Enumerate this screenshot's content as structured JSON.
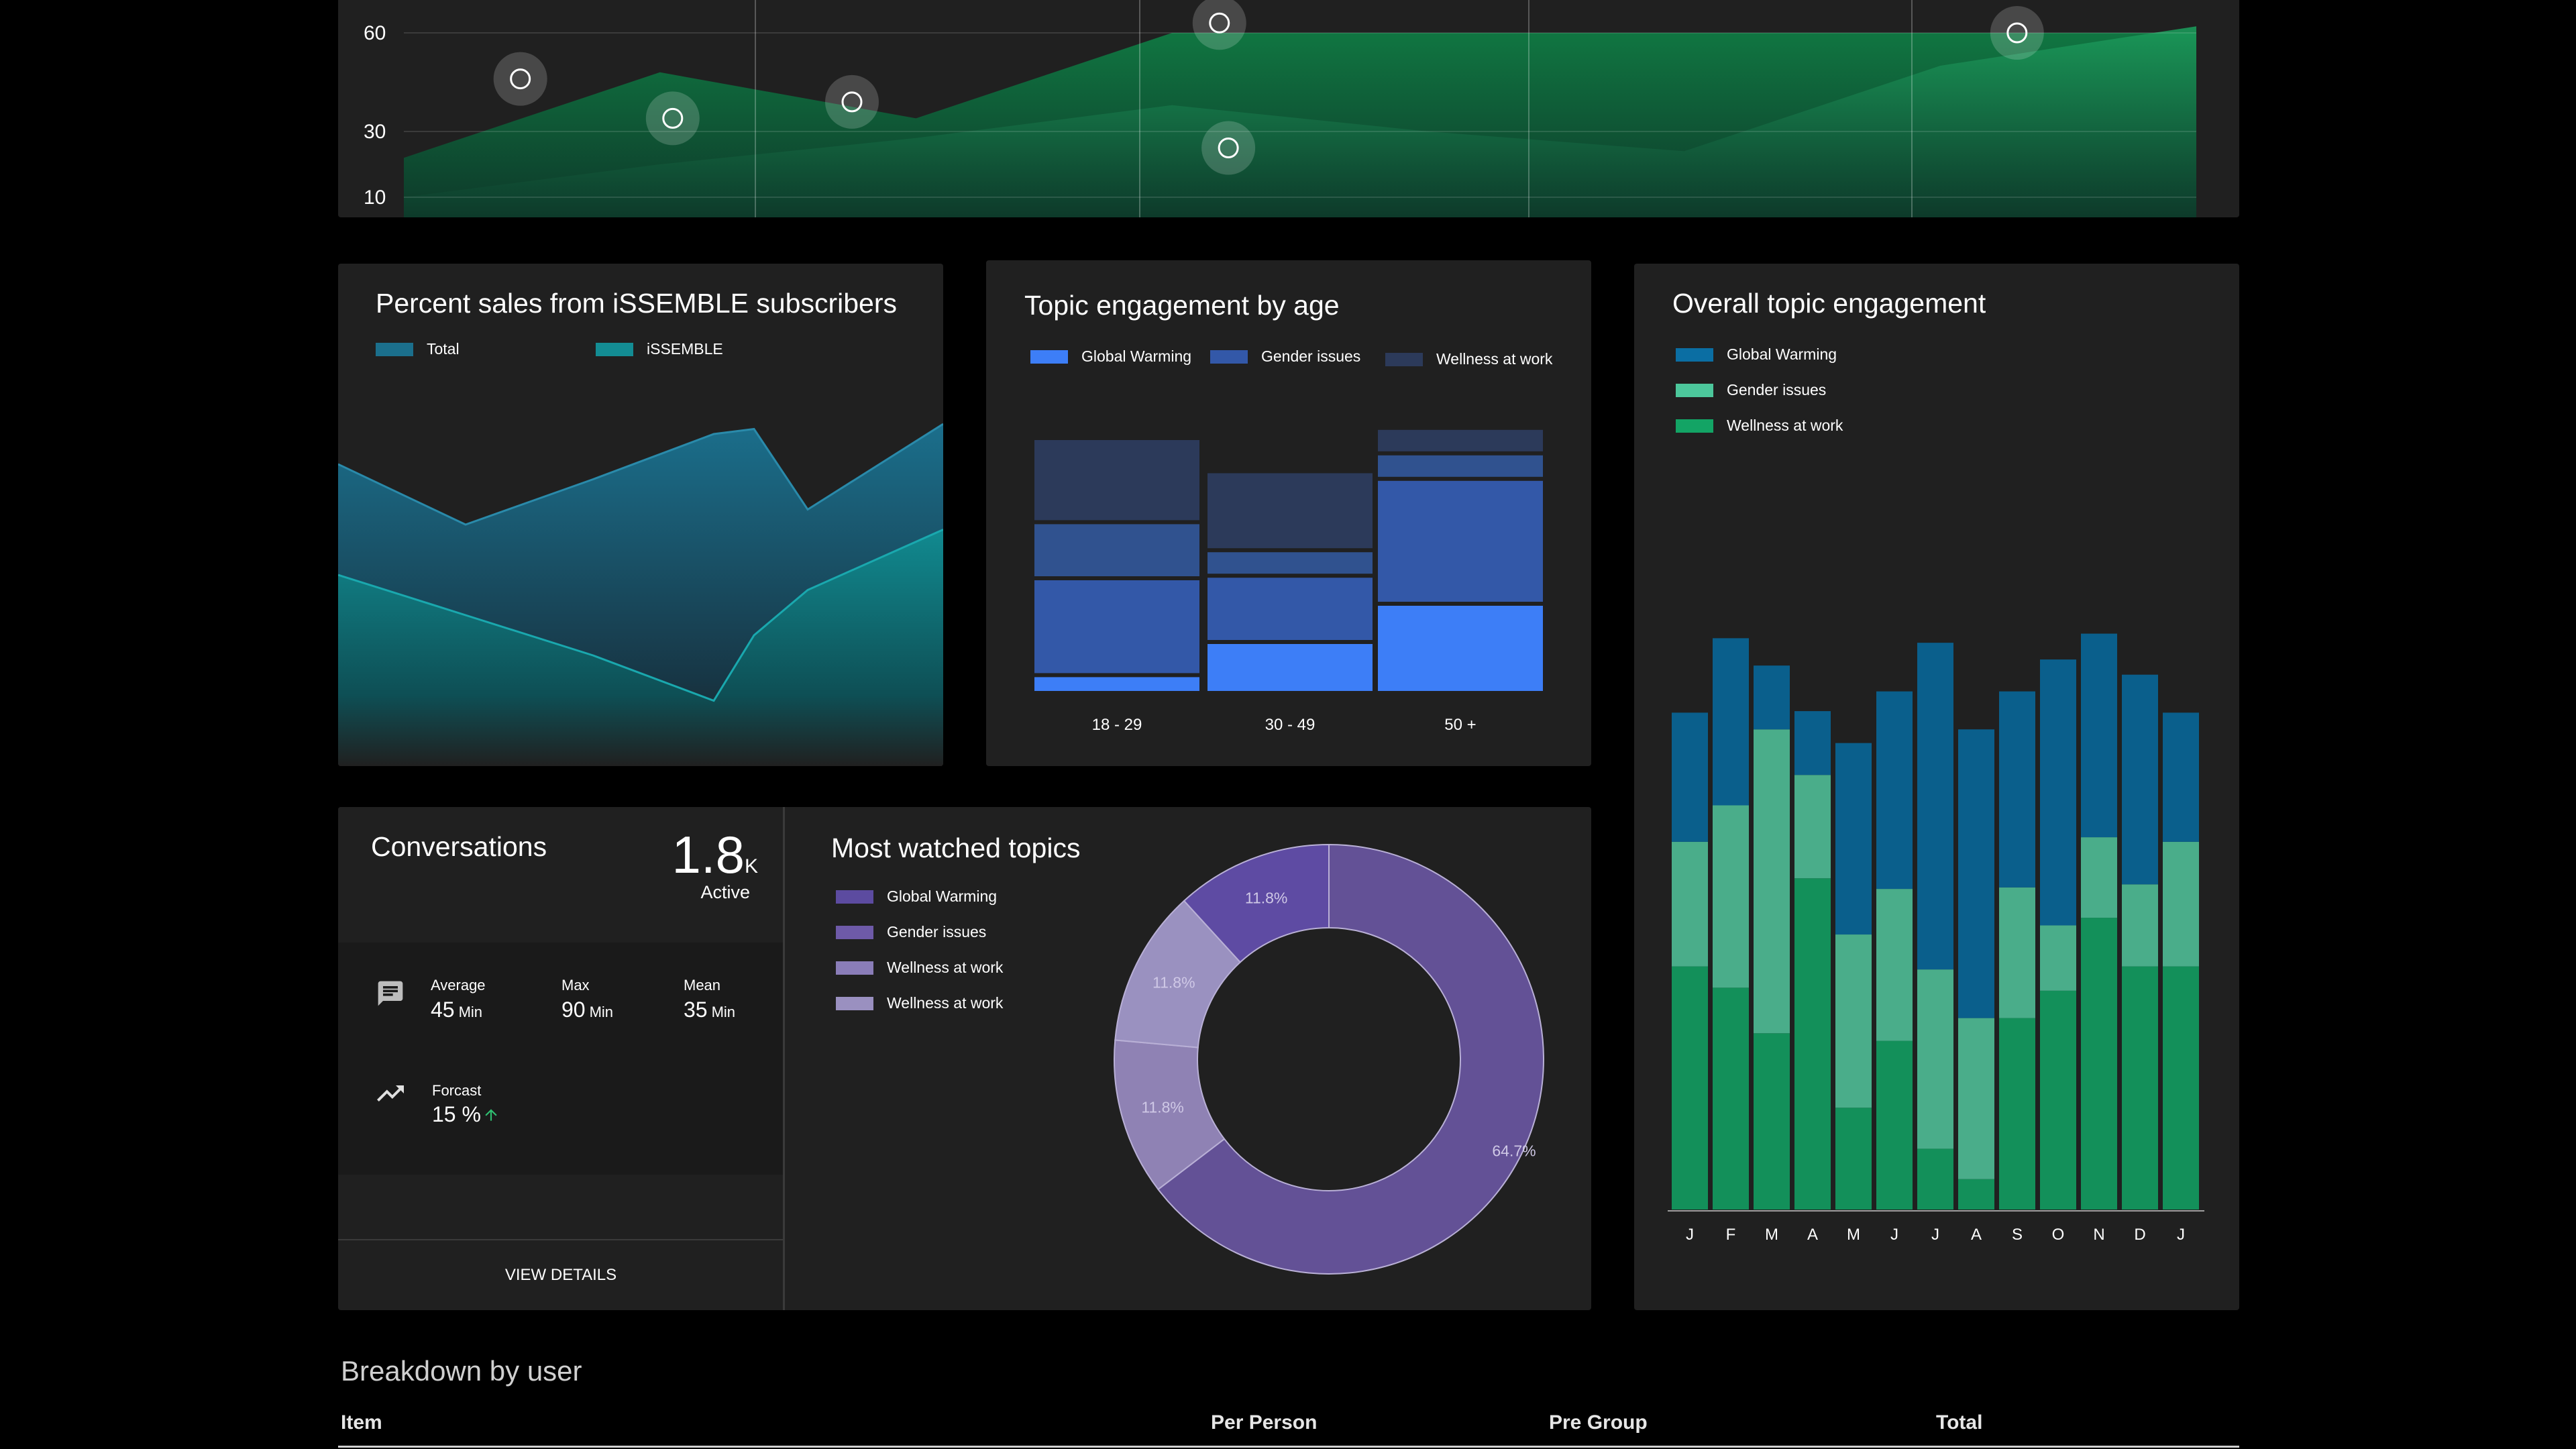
{
  "top_chart": {
    "y_ticks": [
      "60",
      "30",
      "10"
    ],
    "colors": {
      "green_dark": "#0e7a3f",
      "green_light": "#1a8a55"
    }
  },
  "sales_card": {
    "title": "Percent sales from iSSEMBLE subscribers",
    "legend": [
      {
        "label": "Total",
        "color": "#1b6f8c"
      },
      {
        "label": "iSSEMBLE",
        "color": "#138c93"
      }
    ]
  },
  "age_card": {
    "title": "Topic engagement by age",
    "legend": [
      {
        "label": "Global Warming",
        "color": "#3d7ef7"
      },
      {
        "label": "Gender issues",
        "color": "#3358a8"
      },
      {
        "label": "Wellness at work",
        "color": "#2c3a5a"
      }
    ]
  },
  "overall_card": {
    "title": "Overall topic engagement",
    "legend": [
      {
        "label": "Global Warming",
        "color": "#0b6ea3"
      },
      {
        "label": "Gender issues",
        "color": "#4cc79b"
      },
      {
        "label": "Wellness at work",
        "color": "#13a465"
      }
    ]
  },
  "conversations": {
    "title": "Conversations",
    "active_value": "1.8",
    "active_unit": "K",
    "active_label": "Active",
    "average_label": "Average",
    "average_value": "45",
    "max_label": "Max",
    "max_value": "90",
    "mean_label": "Mean",
    "mean_value": "35",
    "unit": "Min",
    "forecast_label": "Forcast",
    "forecast_value": "15 %",
    "view_details": "VIEW DETAILS",
    "icons": {
      "chat": "chat-icon",
      "trend": "trending-up-icon",
      "arrow": "arrow-up-icon"
    }
  },
  "topics_card": {
    "title": "Most watched topics",
    "legend": [
      {
        "label": "Global Warming",
        "color": "#5c4ba0"
      },
      {
        "label": "Gender issues",
        "color": "#6e5aa8"
      },
      {
        "label": "Wellness at work",
        "color": "#8a7db8"
      },
      {
        "label": "Wellness at work",
        "color": "#9a90c0"
      }
    ]
  },
  "breakdown": {
    "title": "Breakdown by user",
    "columns": [
      "Item",
      "Per Person",
      "Pre Group",
      "Total"
    ]
  },
  "chart_data": [
    {
      "type": "area",
      "title": "",
      "y_ticks": [
        10,
        30,
        60
      ],
      "series": [
        {
          "values": [
            10,
            20,
            28,
            38,
            30,
            24,
            50,
            62
          ]
        },
        {
          "values": [
            22,
            48,
            34,
            60,
            60,
            60,
            60,
            60
          ]
        }
      ],
      "markers": [
        {
          "x": 0.26,
          "y": 46
        },
        {
          "x": 0.6,
          "y": 34
        },
        {
          "x": 1.0,
          "y": 39
        },
        {
          "x": 1.82,
          "y": 63
        },
        {
          "x": 1.84,
          "y": 25
        },
        {
          "x": 3.6,
          "y": 60
        }
      ]
    },
    {
      "type": "area",
      "title": "Percent sales from iSSEMBLE subscribers",
      "series": [
        {
          "name": "Total",
          "values": [
            60,
            48,
            57,
            66,
            67,
            51,
            68
          ]
        },
        {
          "name": "iSSEMBLE",
          "values": [
            38,
            30,
            22,
            13,
            26,
            35,
            47
          ]
        }
      ]
    },
    {
      "type": "bar",
      "title": "Topic engagement by age",
      "categories": [
        "18 - 29",
        "30 - 49",
        "50 +"
      ],
      "stacked_segments": [
        [
          7,
          38,
          22,
          33
        ],
        [
          20,
          26,
          10,
          31
        ],
        [
          35,
          49,
          10,
          10
        ]
      ],
      "series_colors": [
        "#3d7ef7",
        "#3358a8",
        "#30528f",
        "#2c3a5a"
      ]
    },
    {
      "type": "bar",
      "title": "Overall topic engagement",
      "categories": [
        "J",
        "F",
        "M",
        "A",
        "M",
        "J",
        "J",
        "A",
        "S",
        "O",
        "N",
        "D",
        "J"
      ],
      "series": [
        {
          "name": "Wellness at work",
          "values": [
            160,
            146,
            116,
            218,
            67,
            111,
            40,
            20,
            126,
            144,
            192,
            160,
            160
          ]
        },
        {
          "name": "Gender issues",
          "values": [
            82,
            120,
            200,
            68,
            114,
            100,
            118,
            106,
            86,
            43,
            53,
            54,
            82
          ]
        },
        {
          "name": "Global Warming",
          "values": [
            85,
            110,
            42,
            42,
            126,
            130,
            215,
            190,
            129,
            175,
            134,
            138,
            85
          ]
        }
      ]
    },
    {
      "type": "pie",
      "title": "Most watched topics",
      "slices": [
        {
          "label": "64.7%",
          "value": 64.7
        },
        {
          "label": "11.8%",
          "value": 11.8
        },
        {
          "label": "11.8%",
          "value": 11.8
        },
        {
          "label": "11.8%",
          "value": 11.8
        }
      ]
    }
  ]
}
